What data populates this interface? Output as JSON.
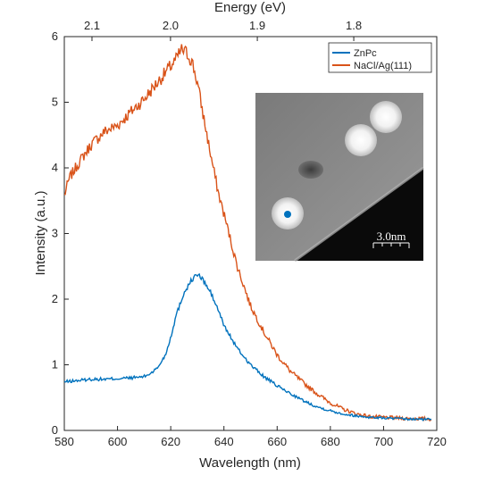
{
  "chart_data": {
    "type": "line",
    "x_axis": {
      "label": "Wavelength (nm)",
      "range": [
        580,
        720
      ],
      "ticks": [
        580,
        600,
        620,
        640,
        660,
        680,
        700,
        720
      ],
      "tick_labels": [
        "580",
        "600",
        "620",
        "640",
        "660",
        "680",
        "700",
        "720"
      ]
    },
    "y_axis": {
      "label": "Intensity (a.u.)",
      "range": [
        0,
        6
      ],
      "ticks": [
        0,
        1,
        2,
        3,
        4,
        5,
        6
      ],
      "tick_labels": [
        "0",
        "1",
        "2",
        "3",
        "4",
        "5",
        "6"
      ]
    },
    "top_axis": {
      "label": "Energy (eV)",
      "ticks_ev": [
        2.1,
        2.0,
        1.9,
        1.8
      ],
      "tick_labels": [
        "2.1",
        "2.0",
        "1.9",
        "1.8"
      ]
    },
    "legend_position": "top-right",
    "series": [
      {
        "name": "ZnPc",
        "color": "#0072BD",
        "x": [
          580,
          585,
          590,
          595,
          600,
          605,
          610,
          612,
          615,
          618,
          620,
          622,
          625,
          628,
          630,
          632,
          635,
          638,
          640,
          645,
          650,
          655,
          660,
          665,
          670,
          675,
          680,
          685,
          690,
          695,
          700,
          705,
          710,
          715,
          718
        ],
        "y": [
          0.74,
          0.76,
          0.78,
          0.78,
          0.79,
          0.8,
          0.82,
          0.86,
          0.95,
          1.15,
          1.42,
          1.75,
          2.1,
          2.3,
          2.38,
          2.3,
          2.1,
          1.82,
          1.6,
          1.25,
          1.0,
          0.82,
          0.68,
          0.56,
          0.45,
          0.36,
          0.3,
          0.25,
          0.22,
          0.2,
          0.19,
          0.18,
          0.17,
          0.17,
          0.17
        ]
      },
      {
        "name": "NaCl/Ag(111)",
        "color": "#D95319",
        "x": [
          580,
          582,
          585,
          590,
          595,
          600,
          605,
          610,
          615,
          618,
          620,
          622,
          624,
          626,
          628,
          630,
          632,
          635,
          638,
          640,
          645,
          650,
          655,
          660,
          665,
          670,
          675,
          680,
          685,
          690,
          695,
          700,
          705,
          710,
          715,
          718
        ],
        "y": [
          3.58,
          3.85,
          4.05,
          4.35,
          4.55,
          4.65,
          4.85,
          5.05,
          5.3,
          5.45,
          5.55,
          5.65,
          5.8,
          5.75,
          5.62,
          5.3,
          4.85,
          4.2,
          3.6,
          3.3,
          2.5,
          1.9,
          1.5,
          1.15,
          0.9,
          0.72,
          0.56,
          0.42,
          0.32,
          0.25,
          0.21,
          0.2,
          0.19,
          0.18,
          0.18,
          0.17
        ]
      }
    ],
    "inset": {
      "description_type": "STM image",
      "scale_bar_label": "3.0nm"
    }
  },
  "colors": {
    "series_1": "#0072BD",
    "series_2": "#D95319",
    "axis": "#262626",
    "marker": "#0072BD"
  }
}
